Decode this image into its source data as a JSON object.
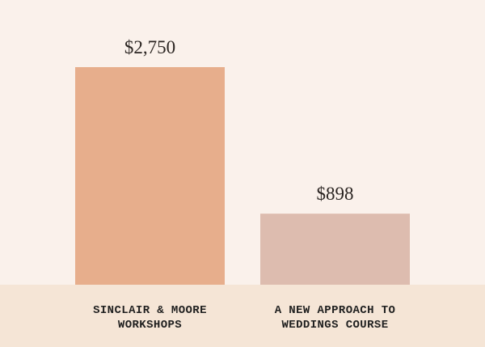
{
  "colors": {
    "background": "#faf1eb",
    "baseline_band": "#f5e5d6",
    "bar_1": "#e7ae8c",
    "bar_2": "#ddbcaf"
  },
  "chart_data": {
    "type": "bar",
    "title": "",
    "xlabel": "",
    "ylabel": "",
    "ylim": [
      0,
      2750
    ],
    "grid": false,
    "categories": [
      {
        "line1": "SINCLAIR & MOORE",
        "line2": "WORKSHOPS"
      },
      {
        "line1": "A NEW APPROACH TO",
        "line2": "WEDDINGS COURSE"
      }
    ],
    "values": [
      2750,
      898
    ],
    "value_labels": [
      "$2,750",
      "$898"
    ]
  }
}
